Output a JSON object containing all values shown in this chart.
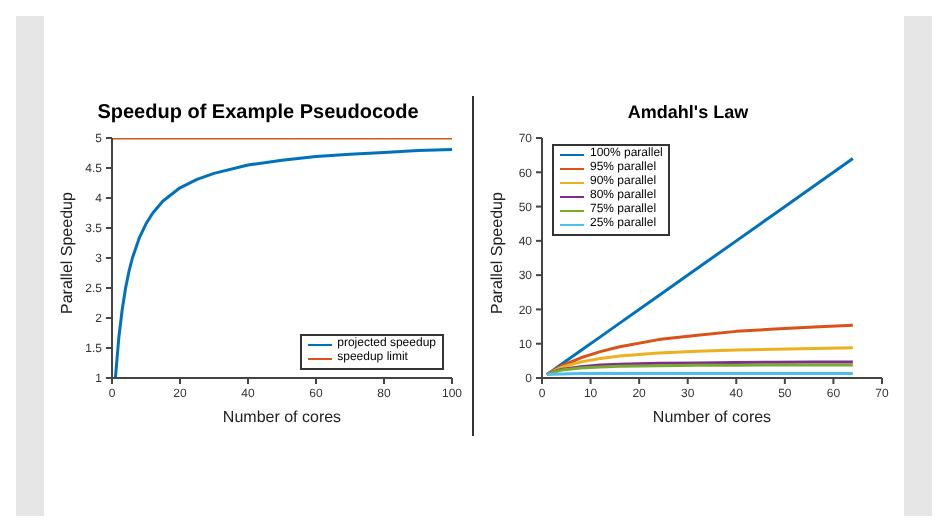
{
  "chart_data": [
    {
      "type": "line",
      "title": "Speedup of Example Pseudocode",
      "xlabel": "Number of cores",
      "ylabel": "Parallel Speedup",
      "xlim": [
        0,
        100
      ],
      "xticks": [
        0,
        20,
        40,
        60,
        80,
        100
      ],
      "ylim": [
        1,
        5
      ],
      "yticks": [
        1,
        1.5,
        2,
        2.5,
        3,
        3.5,
        4,
        4.5,
        5
      ],
      "legend": "bottom right",
      "marker": "none",
      "line_style": "solid",
      "series": [
        {
          "name": "projected speedup",
          "color": "#0072bd",
          "x": [
            1,
            2,
            3,
            4,
            5,
            6,
            8,
            10,
            12,
            15,
            20,
            25,
            30,
            40,
            50,
            60,
            70,
            80,
            90,
            100
          ],
          "values": [
            1,
            1.67,
            2.14,
            2.5,
            2.78,
            3.0,
            3.33,
            3.57,
            3.75,
            3.95,
            4.17,
            4.31,
            4.41,
            4.55,
            4.63,
            4.69,
            4.73,
            4.76,
            4.79,
            4.81
          ]
        },
        {
          "name": "speedup limit",
          "color": "#d95319",
          "x": [
            0,
            100
          ],
          "values": [
            5,
            5
          ]
        }
      ]
    },
    {
      "type": "line",
      "title": "Amdahl's Law",
      "xlabel": "Number of cores",
      "ylabel": "Parallel Speedup",
      "xlim": [
        0,
        70
      ],
      "xticks": [
        0,
        10,
        20,
        30,
        40,
        50,
        60,
        70
      ],
      "ylim": [
        0,
        70
      ],
      "yticks": [
        0,
        10,
        20,
        30,
        40,
        50,
        60,
        70
      ],
      "legend": "top left",
      "marker": "none",
      "line_style": "solid",
      "x": [
        1,
        2,
        4,
        8,
        12,
        16,
        24,
        32,
        40,
        48,
        56,
        64
      ],
      "series": [
        {
          "name": "100% parallel",
          "color": "#0072bd",
          "values": [
            1,
            2,
            4,
            8,
            12,
            16,
            24,
            32,
            40,
            48,
            56,
            64
          ]
        },
        {
          "name": "95% parallel",
          "color": "#d95319",
          "values": [
            1,
            1.9,
            3.5,
            5.9,
            7.7,
            9.1,
            11.2,
            12.5,
            13.6,
            14.3,
            14.9,
            15.4
          ]
        },
        {
          "name": "90% parallel",
          "color": "#edb120",
          "values": [
            1,
            1.8,
            3.1,
            4.7,
            5.7,
            6.4,
            7.3,
            7.8,
            8.2,
            8.4,
            8.6,
            8.8
          ]
        },
        {
          "name": "80% parallel",
          "color": "#7e2f8e",
          "values": [
            1,
            1.7,
            2.5,
            3.3,
            3.8,
            4.0,
            4.3,
            4.4,
            4.5,
            4.6,
            4.7,
            4.7
          ]
        },
        {
          "name": "75% parallel",
          "color": "#77ac30",
          "values": [
            1,
            1.6,
            2.3,
            2.9,
            3.2,
            3.4,
            3.6,
            3.7,
            3.7,
            3.8,
            3.8,
            3.8
          ]
        },
        {
          "name": "25% parallel",
          "color": "#4dbeee",
          "values": [
            1,
            1.1,
            1.2,
            1.3,
            1.3,
            1.3,
            1.3,
            1.3,
            1.3,
            1.3,
            1.3,
            1.3
          ]
        }
      ]
    }
  ]
}
